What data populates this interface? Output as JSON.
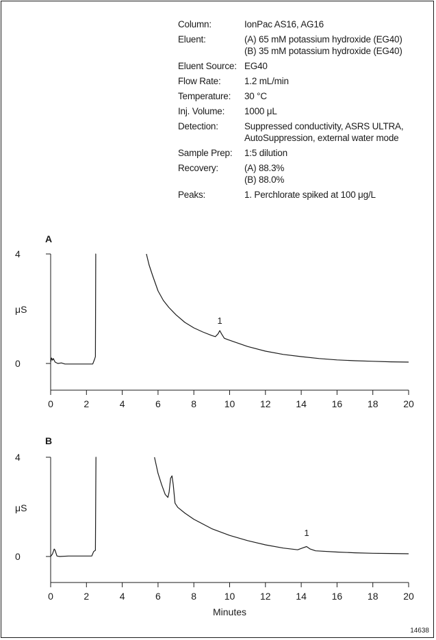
{
  "conditions": [
    {
      "label": "Column:",
      "values": [
        "IonPac AS16, AG16"
      ]
    },
    {
      "label": "Eluent:",
      "values": [
        "(A) 65 mM potassium hydroxide (EG40)",
        "(B) 35 mM potassium hydroxide (EG40)"
      ]
    },
    {
      "label": "Eluent Source:",
      "values": [
        "EG40"
      ]
    },
    {
      "label": "Flow Rate:",
      "values": [
        "1.2 mL/min"
      ]
    },
    {
      "label": "Temperature:",
      "values": [
        "30 °C"
      ]
    },
    {
      "label": "Inj. Volume:",
      "values": [
        "1000 μL"
      ]
    },
    {
      "label": "Detection:",
      "values": [
        "Suppressed conductivity, ASRS ULTRA,",
        "AutoSuppression, external water mode"
      ]
    },
    {
      "label": "Sample Prep:",
      "values": [
        "1:5 dilution"
      ]
    },
    {
      "label": "Recovery:",
      "values": [
        "(A) 88.3%",
        "(B) 88.0%"
      ]
    },
    {
      "label": "Peaks:",
      "values": [
        "1. Perchlorate spiked at 100 μg/L"
      ]
    }
  ],
  "figure_id": "14638",
  "chart_data": [
    {
      "type": "line",
      "panel_label": "A",
      "xlabel": "",
      "ylabel": "μS",
      "xlim": [
        0,
        20
      ],
      "ylim": [
        -1.4,
        4
      ],
      "xticks": [
        0,
        2,
        4,
        6,
        8,
        10,
        12,
        14,
        16,
        18,
        20
      ],
      "yticks": [
        0,
        4
      ],
      "peak_labels": [
        {
          "text": "1",
          "x": 9.45,
          "y": 1.2
        }
      ],
      "series": [
        {
          "x": [
            0,
            0.05,
            0.1,
            0.15,
            0.25,
            0.4,
            0.6,
            0.8,
            1.0,
            1.5,
            2.0,
            2.35,
            2.45,
            2.5,
            2.52,
            2.53
          ],
          "y": [
            0.05,
            0.2,
            0.12,
            0.18,
            0.05,
            0.0,
            0.02,
            -0.02,
            -0.02,
            -0.02,
            -0.02,
            -0.02,
            0.15,
            0.25,
            4.0,
            4.0
          ]
        },
        {
          "x": [
            5.35,
            5.5,
            5.7,
            6.0,
            6.3,
            6.6,
            7.0,
            7.5,
            8.0,
            8.5,
            9.0,
            9.2,
            9.35,
            9.45,
            9.55,
            9.7,
            9.9,
            10.3,
            11.0,
            12.0,
            13.0,
            14.0,
            15.0,
            16.0,
            17.0,
            18.0,
            19.0,
            20.0
          ],
          "y": [
            4.0,
            3.6,
            3.2,
            2.65,
            2.3,
            2.05,
            1.78,
            1.5,
            1.3,
            1.15,
            1.02,
            0.98,
            1.08,
            1.2,
            1.08,
            0.92,
            0.87,
            0.78,
            0.62,
            0.45,
            0.33,
            0.25,
            0.18,
            0.13,
            0.1,
            0.08,
            0.06,
            0.05
          ]
        }
      ]
    },
    {
      "type": "line",
      "panel_label": "B",
      "xlabel": "Minutes",
      "ylabel": "μS",
      "xlim": [
        0,
        20
      ],
      "ylim": [
        -1.1,
        4
      ],
      "xticks": [
        0,
        2,
        4,
        6,
        8,
        10,
        12,
        14,
        16,
        18,
        20
      ],
      "yticks": [
        0,
        4
      ],
      "peak_labels": [
        {
          "text": "1",
          "x": 14.3,
          "y": 0.55
        }
      ],
      "series": [
        {
          "x": [
            0,
            0.1,
            0.2,
            0.25,
            0.35,
            0.5,
            1.0,
            1.5,
            2.0,
            2.3,
            2.4,
            2.5,
            2.53,
            2.55
          ],
          "y": [
            0.0,
            0.1,
            0.3,
            0.25,
            0.02,
            0.0,
            0.02,
            0.02,
            0.02,
            0.02,
            0.2,
            0.25,
            4.0,
            4.0
          ]
        },
        {
          "x": [
            5.8,
            6.0,
            6.2,
            6.4,
            6.55,
            6.62,
            6.7,
            6.78,
            6.85,
            6.95,
            7.1,
            7.5,
            8.0,
            9.0,
            10.0,
            11.0,
            12.0,
            13.0,
            13.8,
            14.1,
            14.3,
            14.5,
            14.8,
            16.0,
            17.0,
            18.0,
            19.0,
            20.0
          ],
          "y": [
            4.0,
            3.35,
            2.9,
            2.5,
            2.38,
            2.6,
            3.15,
            3.25,
            2.9,
            2.15,
            1.98,
            1.75,
            1.5,
            1.12,
            0.85,
            0.64,
            0.47,
            0.34,
            0.27,
            0.35,
            0.4,
            0.3,
            0.23,
            0.18,
            0.15,
            0.13,
            0.12,
            0.11
          ]
        }
      ]
    }
  ]
}
